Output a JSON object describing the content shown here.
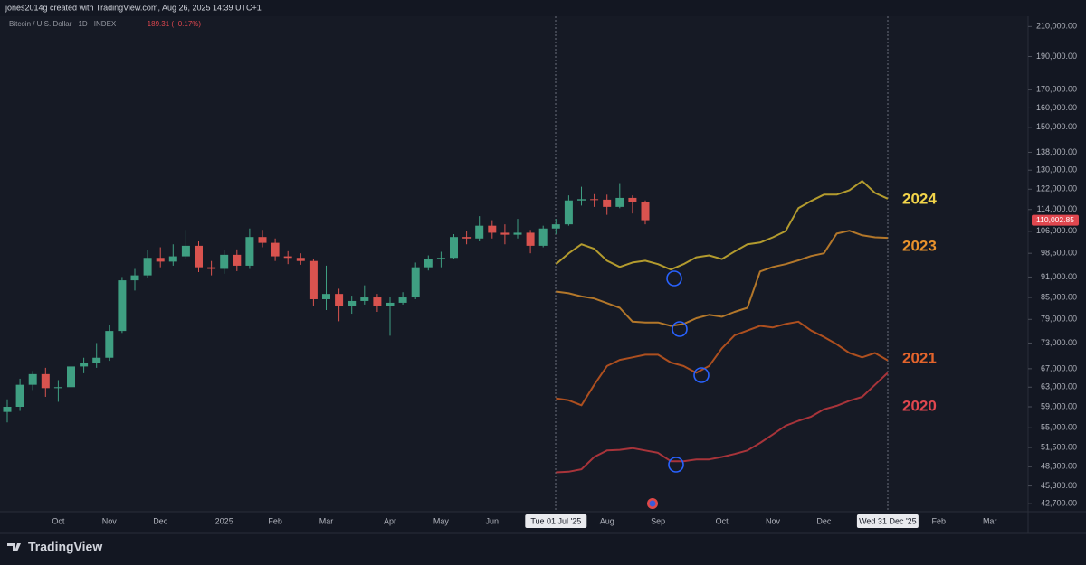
{
  "header": {
    "caption": "jones2014g created with TradingView.com, Aug 26, 2025 14:39 UTC+1",
    "brand": "TradingView"
  },
  "chart_data": {
    "type": "candlestick",
    "title": "Bitcoin / U.S. Dollar · 1D · INDEX",
    "change": "−189.31 (−0.17%)",
    "log_scale": true,
    "grid": false,
    "up_color": "#3f9f82",
    "down_color": "#d9534f",
    "ylim": [
      41700,
      216000
    ],
    "yticks": [
      {
        "value": 210000,
        "label": "210,000.00"
      },
      {
        "value": 190000,
        "label": "190,000.00"
      },
      {
        "value": 170000,
        "label": "170,000.00"
      },
      {
        "value": 160000,
        "label": "160,000.00"
      },
      {
        "value": 150000,
        "label": "150,000.00"
      },
      {
        "value": 138000,
        "label": "138,000.00"
      },
      {
        "value": 130000,
        "label": "130,000.00"
      },
      {
        "value": 122000,
        "label": "122,000.00"
      },
      {
        "value": 114000,
        "label": "114,000.00"
      },
      {
        "value": 106000,
        "label": "106,000.00"
      },
      {
        "value": 98500,
        "label": "98,500.00"
      },
      {
        "value": 91000,
        "label": "91,000.00"
      },
      {
        "value": 85000,
        "label": "85,000.00"
      },
      {
        "value": 79000,
        "label": "79,000.00"
      },
      {
        "value": 73000,
        "label": "73,000.00"
      },
      {
        "value": 67000,
        "label": "67,000.00"
      },
      {
        "value": 63000,
        "label": "63,000.00"
      },
      {
        "value": 59000,
        "label": "59,000.00"
      },
      {
        "value": 55000,
        "label": "55,000.00"
      },
      {
        "value": 51500,
        "label": "51,500.00"
      },
      {
        "value": 48300,
        "label": "48,300.00"
      },
      {
        "value": 45300,
        "label": "45,300.00"
      },
      {
        "value": 42700,
        "label": "42,700.00"
      }
    ],
    "last_price": {
      "value": 110002.85,
      "label": "110,002.85"
    },
    "categories": [
      null,
      null,
      null,
      null,
      "Oct",
      null,
      null,
      null,
      "Nov",
      null,
      null,
      null,
      "Dec",
      null,
      null,
      null,
      null,
      "2025",
      null,
      null,
      null,
      "Feb",
      null,
      null,
      null,
      "Mar",
      null,
      null,
      null,
      null,
      "Apr",
      null,
      null,
      null,
      "May",
      null,
      null,
      null,
      "Jun",
      null,
      null,
      null,
      null,
      "Tue 01 Jul '25",
      null,
      null,
      null,
      "Aug",
      null,
      null,
      null,
      "Sep",
      null,
      null,
      null,
      null,
      "Oct",
      null,
      null,
      null,
      "Nov",
      null,
      null,
      null,
      "Dec",
      null,
      null,
      null,
      null,
      "Wed 31 Dec '25",
      null,
      null,
      null,
      "Feb",
      null,
      null,
      null,
      "Mar",
      null,
      null
    ],
    "open": [
      58000,
      59000,
      63500,
      65800,
      62800,
      63000,
      67500,
      68300,
      69500,
      76000,
      90000,
      91500,
      97000,
      95800,
      97500,
      101000,
      94000,
      93500,
      98000,
      94500,
      104000,
      102000,
      97500,
      97000,
      96000,
      84500,
      86000,
      82500,
      84000,
      85000,
      82500,
      83500,
      85000,
      94000,
      96500,
      97000,
      104000,
      103500,
      108000,
      105500,
      104800,
      105500,
      101000,
      107000,
      108500,
      117500,
      118000,
      117800,
      115000,
      118500,
      117000,
      null,
      null,
      null,
      null,
      null,
      null,
      null,
      null,
      null,
      null,
      null,
      null,
      null,
      null,
      null,
      null,
      null,
      null,
      null,
      null,
      null,
      null,
      null,
      null,
      null,
      null,
      null,
      null,
      null
    ],
    "high": [
      60500,
      64800,
      66500,
      67200,
      64500,
      68400,
      69500,
      73000,
      77500,
      91000,
      93500,
      99500,
      100500,
      101500,
      106500,
      102500,
      96000,
      99500,
      99800,
      107000,
      106500,
      103500,
      99200,
      98500,
      96500,
      94500,
      87500,
      85500,
      88500,
      86000,
      85000,
      86500,
      95500,
      97800,
      99000,
      105000,
      106000,
      111500,
      110000,
      108500,
      110500,
      106500,
      108000,
      110500,
      119500,
      123000,
      120000,
      119800,
      124500,
      119500,
      117500,
      null,
      null,
      null,
      null,
      null,
      null,
      null,
      null,
      null,
      null,
      null,
      null,
      null,
      null,
      null,
      null,
      null,
      null,
      null,
      null,
      null,
      null,
      null,
      null,
      null,
      null,
      null,
      null,
      null
    ],
    "low": [
      56000,
      58200,
      62400,
      61000,
      60000,
      62500,
      66000,
      67200,
      68800,
      75500,
      87000,
      90800,
      94000,
      94500,
      96500,
      92500,
      91500,
      92000,
      92800,
      93500,
      100500,
      96000,
      95000,
      94800,
      82500,
      81500,
      78500,
      80500,
      83000,
      81000,
      74800,
      83000,
      84500,
      93000,
      94000,
      96500,
      101500,
      102500,
      103500,
      101500,
      103500,
      98500,
      100500,
      105000,
      108000,
      115500,
      115000,
      112000,
      114500,
      112500,
      108500,
      null,
      null,
      null,
      null,
      null,
      null,
      null,
      null,
      null,
      null,
      null,
      null,
      null,
      null,
      null,
      null,
      null,
      null,
      null,
      null,
      null,
      null,
      null,
      null,
      null,
      null,
      null,
      null,
      null
    ],
    "close": [
      59000,
      63500,
      65800,
      62800,
      63000,
      67500,
      68300,
      69500,
      76000,
      90000,
      91500,
      97000,
      95800,
      97500,
      101000,
      94000,
      93500,
      98000,
      94500,
      104000,
      102000,
      97500,
      97000,
      96000,
      84500,
      86000,
      82500,
      84000,
      85000,
      82500,
      83500,
      85000,
      94000,
      96500,
      97000,
      104000,
      103500,
      108000,
      105500,
      104800,
      105500,
      101000,
      107000,
      108500,
      117500,
      118000,
      117800,
      115000,
      118500,
      117000,
      110000,
      null,
      null,
      null,
      null,
      null,
      null,
      null,
      null,
      null,
      null,
      null,
      null,
      null,
      null,
      null,
      null,
      null,
      null,
      null,
      null,
      null,
      null,
      null,
      null,
      null,
      null,
      null,
      null,
      null
    ],
    "series": [
      {
        "name": "2024",
        "color": "#b39b2e",
        "label_color": "#f2d44a",
        "values": [
          null,
          null,
          null,
          null,
          null,
          null,
          null,
          null,
          null,
          null,
          null,
          null,
          null,
          null,
          null,
          null,
          null,
          null,
          null,
          null,
          null,
          null,
          null,
          null,
          null,
          null,
          null,
          null,
          null,
          null,
          null,
          null,
          null,
          null,
          null,
          null,
          null,
          null,
          null,
          null,
          null,
          null,
          null,
          95000,
          98500,
          101500,
          100000,
          96100,
          94100,
          95500,
          96100,
          95000,
          93300,
          95000,
          97200,
          97800,
          96600,
          99100,
          101500,
          102100,
          103900,
          106100,
          114500,
          117300,
          119800,
          119800,
          121600,
          125400,
          120500,
          118200,
          null,
          null,
          null,
          null,
          null,
          null,
          null,
          null,
          null,
          null
        ]
      },
      {
        "name": "2023",
        "color": "#b3772a",
        "label_color": "#e8922c",
        "values": [
          null,
          null,
          null,
          null,
          null,
          null,
          null,
          null,
          null,
          null,
          null,
          null,
          null,
          null,
          null,
          null,
          null,
          null,
          null,
          null,
          null,
          null,
          null,
          null,
          null,
          null,
          null,
          null,
          null,
          null,
          null,
          null,
          null,
          null,
          null,
          null,
          null,
          null,
          null,
          null,
          null,
          null,
          null,
          86700,
          86200,
          85300,
          84700,
          83400,
          82100,
          78400,
          78200,
          78200,
          77300,
          77800,
          79300,
          80200,
          79700,
          81000,
          82100,
          92700,
          94100,
          95000,
          96200,
          97600,
          98500,
          105200,
          106200,
          104600,
          103900,
          103700,
          null,
          null,
          null,
          null,
          null,
          null,
          null,
          null,
          null,
          null
        ]
      },
      {
        "name": "2021",
        "color": "#ad4f1f",
        "label_color": "#e3642c",
        "values": [
          null,
          null,
          null,
          null,
          null,
          null,
          null,
          null,
          null,
          null,
          null,
          null,
          null,
          null,
          null,
          null,
          null,
          null,
          null,
          null,
          null,
          null,
          null,
          null,
          null,
          null,
          null,
          null,
          null,
          null,
          null,
          null,
          null,
          null,
          null,
          null,
          null,
          null,
          null,
          null,
          null,
          null,
          null,
          60700,
          60300,
          59300,
          63500,
          67600,
          69000,
          69600,
          70200,
          70200,
          68400,
          67600,
          66100,
          67600,
          71700,
          74900,
          76100,
          77300,
          76900,
          77800,
          78400,
          76100,
          74500,
          72700,
          70600,
          69600,
          70600,
          68900,
          null,
          null,
          null,
          null,
          null,
          null,
          null,
          null,
          null,
          null
        ]
      },
      {
        "name": "2020",
        "color": "#a8343a",
        "label_color": "#e0474f",
        "values": [
          null,
          null,
          null,
          null,
          null,
          null,
          null,
          null,
          null,
          null,
          null,
          null,
          null,
          null,
          null,
          null,
          null,
          null,
          null,
          null,
          null,
          null,
          null,
          null,
          null,
          null,
          null,
          null,
          null,
          null,
          null,
          null,
          null,
          null,
          null,
          null,
          null,
          null,
          null,
          null,
          null,
          null,
          null,
          47400,
          47500,
          47900,
          49900,
          51000,
          51100,
          51400,
          51000,
          50600,
          49200,
          49200,
          49500,
          49500,
          49900,
          50400,
          51000,
          52300,
          53800,
          55400,
          56300,
          57100,
          58500,
          59200,
          60200,
          61000,
          63500,
          66100,
          null,
          null,
          null,
          null,
          null,
          null,
          null,
          null,
          null,
          null
        ]
      }
    ]
  }
}
